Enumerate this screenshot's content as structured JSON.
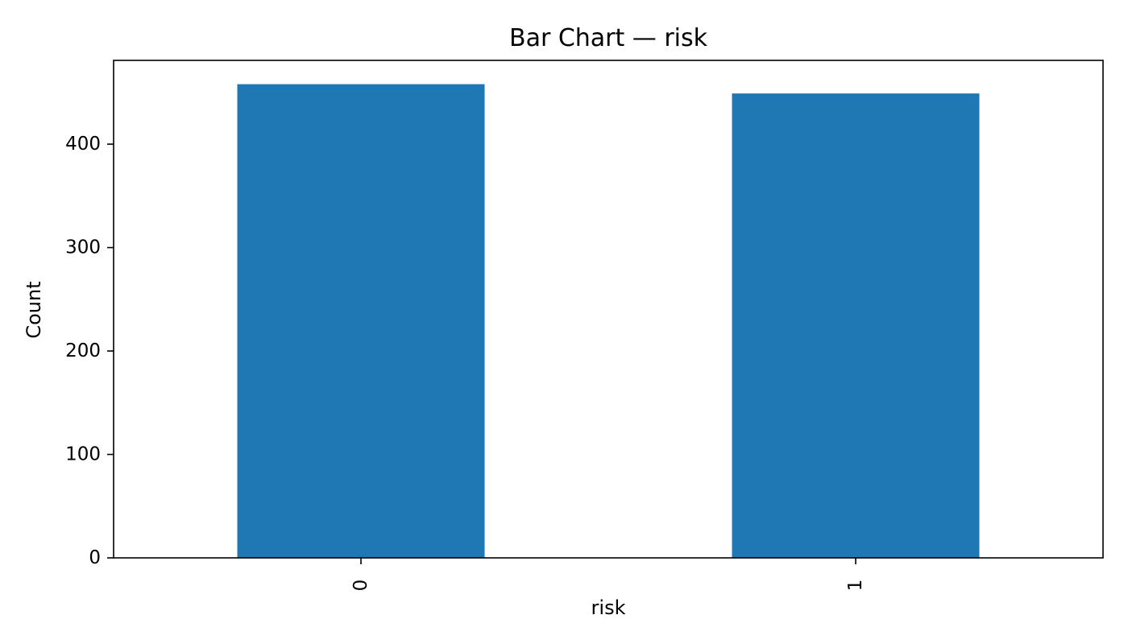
{
  "chart_data": {
    "type": "bar",
    "title": "Bar Chart — risk",
    "xlabel": "risk",
    "ylabel": "Count",
    "categories": [
      "0",
      "1"
    ],
    "values": [
      458,
      449
    ],
    "ylim": [
      0,
      481
    ],
    "yticks": [
      0,
      100,
      200,
      300,
      400
    ],
    "x_tick_rotation": "vertical",
    "grid": false,
    "legend": "none",
    "bar_color": "#1f77b4"
  }
}
